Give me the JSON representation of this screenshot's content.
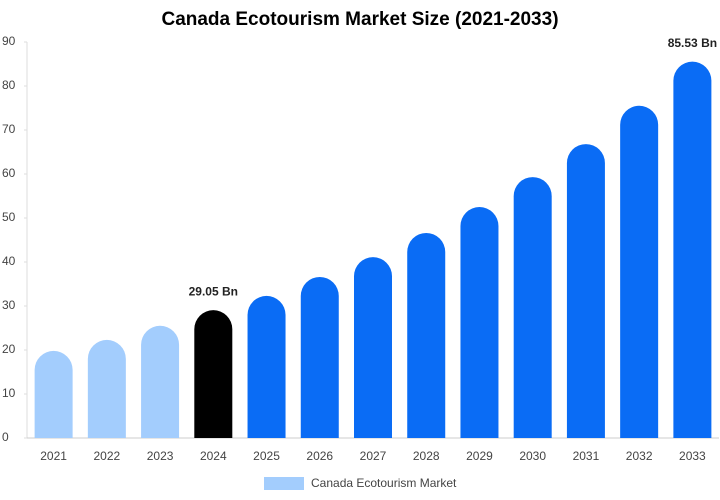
{
  "chart_data": {
    "type": "bar",
    "title": "Canada Ecotourism Market Size (2021-2033)",
    "categories": [
      "2021",
      "2022",
      "2023",
      "2024",
      "2025",
      "2026",
      "2027",
      "2028",
      "2029",
      "2030",
      "2031",
      "2032",
      "2033"
    ],
    "series": [
      {
        "name": "Canada Ecotourism Market",
        "color": "#a3cdfd",
        "bar_colors": [
          "#a3cdfd",
          "#a3cdfd",
          "#a3cdfd",
          "#000000",
          "#0a6cf5",
          "#0a6cf5",
          "#0a6cf5",
          "#0a6cf5",
          "#0a6cf5",
          "#0a6cf5",
          "#0a6cf5",
          "#0a6cf5",
          "#0a6cf5"
        ],
        "values": [
          19.8,
          22.3,
          25.5,
          29.05,
          32.3,
          36.6,
          41.1,
          46.6,
          52.5,
          59.3,
          66.8,
          75.5,
          85.53
        ],
        "value_labels": [
          null,
          null,
          null,
          "29.05 Bn",
          null,
          null,
          null,
          null,
          null,
          null,
          null,
          null,
          "85.53 Bn"
        ]
      }
    ],
    "ylim": [
      0,
      90
    ],
    "yticks": [
      0,
      10,
      20,
      30,
      40,
      50,
      60,
      70,
      80,
      90
    ],
    "grid": false,
    "legend": "bottom"
  }
}
